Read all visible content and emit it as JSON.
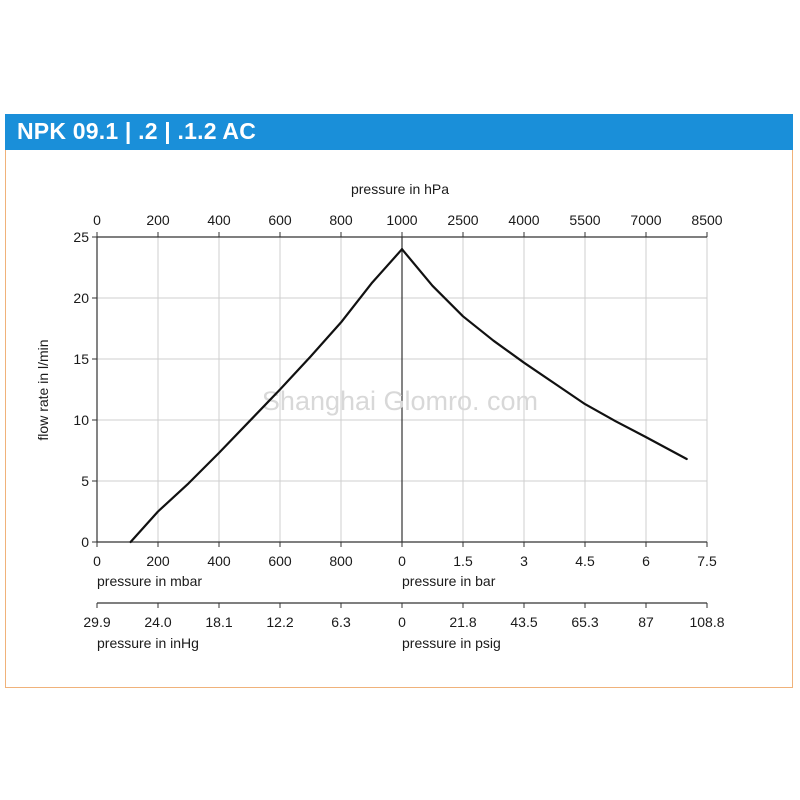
{
  "header": {
    "title": "NPK 09.1 | .2 | .1.2 AC",
    "color": "#1a8fd9"
  },
  "watermark": "Shanghai Glomro. com",
  "chart_data": {
    "type": "line",
    "title": "NPK 09.1 | .2 | .1.2 AC",
    "ylabel": "flow rate in l/min",
    "ylim": [
      0,
      25
    ],
    "yticks": [
      "0",
      "5",
      "10",
      "15",
      "20",
      "25"
    ],
    "grid": true,
    "top_axis": {
      "label": "pressure in hPa",
      "ticks": [
        "0",
        "200",
        "400",
        "600",
        "800",
        "1000",
        "2500",
        "4000",
        "5500",
        "7000",
        "8500"
      ]
    },
    "bottom_axes": [
      {
        "label": "pressure in mbar",
        "side": "vacuum",
        "ticks": [
          "0",
          "200",
          "400",
          "600",
          "800",
          "0"
        ]
      },
      {
        "label": "pressure in bar",
        "side": "pressure",
        "ticks": [
          "1.5",
          "3",
          "4.5",
          "6",
          "7.5"
        ]
      },
      {
        "label": "pressure in inHg",
        "side": "vacuum",
        "ticks": [
          "29.9",
          "24.0",
          "18.1",
          "12.2",
          "6.3",
          "0"
        ]
      },
      {
        "label": "pressure in psig",
        "side": "pressure",
        "ticks": [
          "21.8",
          "43.5",
          "65.3",
          "87",
          "108.8"
        ]
      }
    ],
    "series": [
      {
        "segment": "vacuum",
        "x_unit": "mbar",
        "x": [
          110,
          200,
          300,
          400,
          500,
          600,
          700,
          800,
          900,
          1000
        ],
        "y": [
          0,
          2.5,
          4.8,
          7.3,
          9.9,
          12.5,
          15.2,
          18.0,
          21.2,
          24.0
        ]
      },
      {
        "segment": "pressure",
        "x_unit": "bar",
        "x": [
          0,
          0.75,
          1.5,
          2.25,
          3.0,
          3.75,
          4.5,
          5.25,
          6.0,
          7.0
        ],
        "y": [
          24.0,
          21.0,
          18.5,
          16.5,
          14.7,
          13.0,
          11.3,
          9.9,
          8.6,
          6.8
        ]
      }
    ]
  }
}
